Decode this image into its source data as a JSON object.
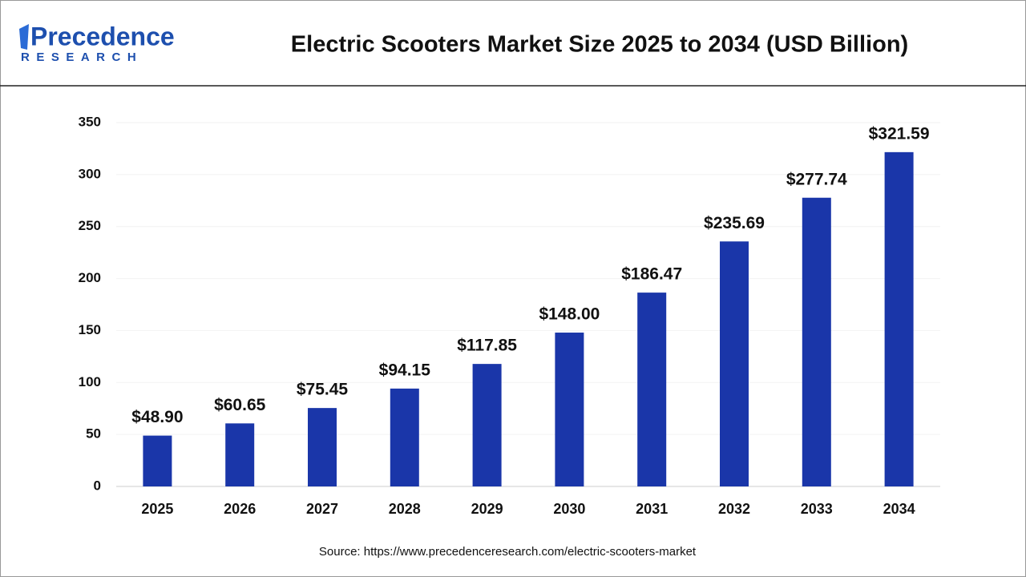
{
  "logo": {
    "name": "Precedence",
    "tagline": "RESEARCH"
  },
  "chart_data": {
    "type": "bar",
    "title": "Electric Scooters Market Size 2025 to 2034 (USD Billion)",
    "categories": [
      "2025",
      "2026",
      "2027",
      "2028",
      "2029",
      "2030",
      "2031",
      "2032",
      "2033",
      "2034"
    ],
    "values": [
      48.9,
      60.65,
      75.45,
      94.15,
      117.85,
      148.0,
      186.47,
      235.69,
      277.74,
      321.59
    ],
    "value_labels": [
      "$48.90",
      "$60.65",
      "$75.45",
      "$94.15",
      "$117.85",
      "$148.00",
      "$186.47",
      "$235.69",
      "$277.74",
      "$321.59"
    ],
    "color": "#1a36a9",
    "ylim": [
      0,
      350
    ],
    "yticks": [
      0,
      50,
      100,
      150,
      200,
      250,
      300,
      350
    ],
    "grid": true,
    "source": "Source: https://www.precedenceresearch.com/electric-scooters-market"
  }
}
